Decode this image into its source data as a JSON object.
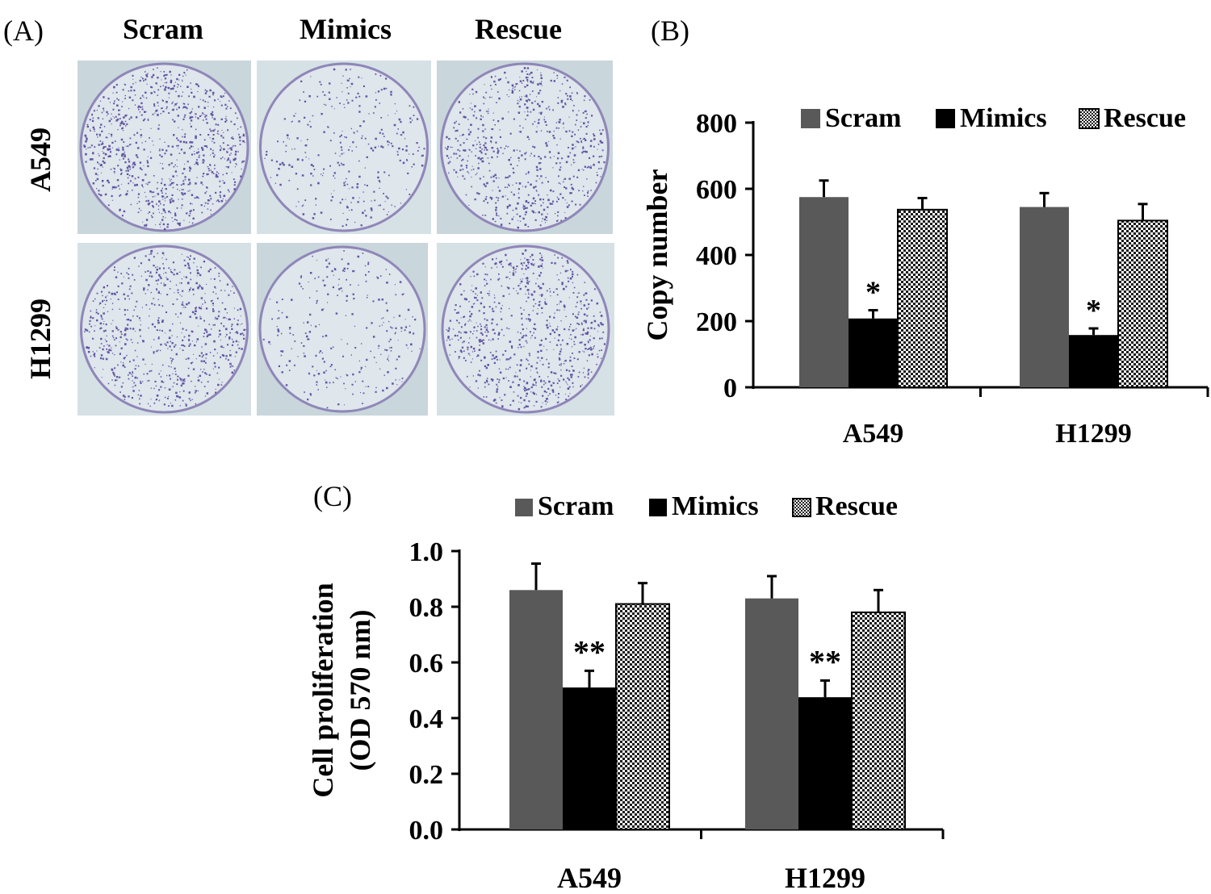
{
  "panelA": {
    "label": "(A)",
    "columns": [
      "Scram",
      "Mimics",
      "Rescue"
    ],
    "rows": [
      "A549",
      "H1299"
    ]
  },
  "colors": {
    "scram": "#595959",
    "mimics": "#000000",
    "plate_bg": "#c9d6dc",
    "plate_bg2": "#d6e1e6",
    "colony": "#4b3c97"
  },
  "chart_data": [
    {
      "panel": "(B)",
      "type": "bar",
      "title": "",
      "categories": [
        "A549",
        "H1299"
      ],
      "series": [
        {
          "name": "Scram",
          "values": [
            575,
            545
          ],
          "errors": [
            50,
            42
          ]
        },
        {
          "name": "Mimics",
          "values": [
            208,
            158
          ],
          "errors": [
            25,
            20
          ]
        },
        {
          "name": "Rescue",
          "values": [
            537,
            504
          ],
          "errors": [
            35,
            50
          ]
        }
      ],
      "significance": [
        "*",
        "*"
      ],
      "xlabel": "",
      "ylabel": "Copy number",
      "ylim": [
        0,
        800
      ],
      "yticks": [
        0,
        200,
        400,
        600,
        800
      ],
      "ytick_labels": [
        "0",
        "200",
        "400",
        "600",
        "800"
      ],
      "legend": "top",
      "grid": false
    },
    {
      "panel": "(C)",
      "type": "bar",
      "title": "",
      "categories": [
        "A549",
        "H1299"
      ],
      "series": [
        {
          "name": "Scram",
          "values": [
            0.86,
            0.83
          ],
          "errors": [
            0.095,
            0.08
          ]
        },
        {
          "name": "Mimics",
          "values": [
            0.51,
            0.475
          ],
          "errors": [
            0.06,
            0.06
          ]
        },
        {
          "name": "Rescue",
          "values": [
            0.81,
            0.78
          ],
          "errors": [
            0.075,
            0.08
          ]
        }
      ],
      "significance": [
        "**",
        "**"
      ],
      "xlabel": "",
      "ylabel": [
        "Cell proliferation",
        "(OD 570 nm)"
      ],
      "ylim": [
        0,
        1.0
      ],
      "yticks": [
        0,
        0.2,
        0.4,
        0.6,
        0.8,
        1.0
      ],
      "ytick_labels": [
        "0.0",
        "0.2",
        "0.4",
        "0.6",
        "0.8",
        "1.0"
      ],
      "legend": "top",
      "grid": false
    }
  ]
}
